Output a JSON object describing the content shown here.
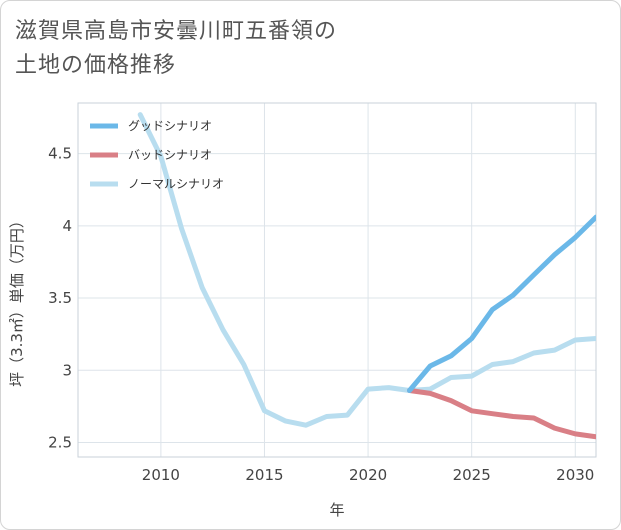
{
  "title_lines": [
    "滋賀県高島市安曇川町五番領の",
    "土地の価格推移"
  ],
  "colors": {
    "good": "#6bb8e8",
    "bad": "#d97f86",
    "normal": "#b8ddef",
    "grid": "#dde4ea"
  },
  "chart_data": {
    "type": "line",
    "title": "滋賀県高島市安曇川町五番領の土地の価格推移",
    "xlabel": "年",
    "ylabel": "坪（3.3㎡）単価（万円）",
    "xlim": [
      2006,
      2031
    ],
    "ylim": [
      2.4,
      4.85
    ],
    "xticks": [
      2010,
      2015,
      2020,
      2025,
      2030
    ],
    "yticks": [
      2.5,
      3,
      3.5,
      4,
      4.5
    ],
    "ytick_labels": [
      "2.5",
      "3",
      "3.5",
      "4",
      "4.5"
    ],
    "grid": true,
    "legend_position": "top-left",
    "series": [
      {
        "name": "ノーマルシナリオ",
        "key": "normal",
        "x": [
          2009,
          2010,
          2011,
          2012,
          2013,
          2014,
          2015,
          2016,
          2017,
          2018,
          2019,
          2020,
          2021,
          2022,
          2023,
          2024,
          2025,
          2026,
          2027,
          2028,
          2029,
          2030,
          2031
        ],
        "values": [
          4.77,
          4.48,
          3.98,
          3.57,
          3.28,
          3.04,
          2.72,
          2.65,
          2.62,
          2.68,
          2.69,
          2.87,
          2.88,
          2.86,
          2.87,
          2.95,
          2.96,
          3.04,
          3.06,
          3.12,
          3.14,
          3.21,
          3.22
        ]
      },
      {
        "name": "バッドシナリオ",
        "key": "bad",
        "x": [
          2022,
          2023,
          2024,
          2025,
          2026,
          2027,
          2028,
          2029,
          2030,
          2031
        ],
        "values": [
          2.86,
          2.84,
          2.79,
          2.72,
          2.7,
          2.68,
          2.67,
          2.6,
          2.56,
          2.54
        ]
      },
      {
        "name": "グッドシナリオ",
        "key": "good",
        "x": [
          2022,
          2023,
          2024,
          2025,
          2026,
          2027,
          2028,
          2029,
          2030,
          2031
        ],
        "values": [
          2.86,
          3.03,
          3.1,
          3.22,
          3.42,
          3.52,
          3.66,
          3.8,
          3.92,
          4.06
        ]
      }
    ],
    "legend": [
      {
        "name": "グッドシナリオ",
        "key": "good"
      },
      {
        "name": "バッドシナリオ",
        "key": "bad"
      },
      {
        "name": "ノーマルシナリオ",
        "key": "normal"
      }
    ]
  }
}
